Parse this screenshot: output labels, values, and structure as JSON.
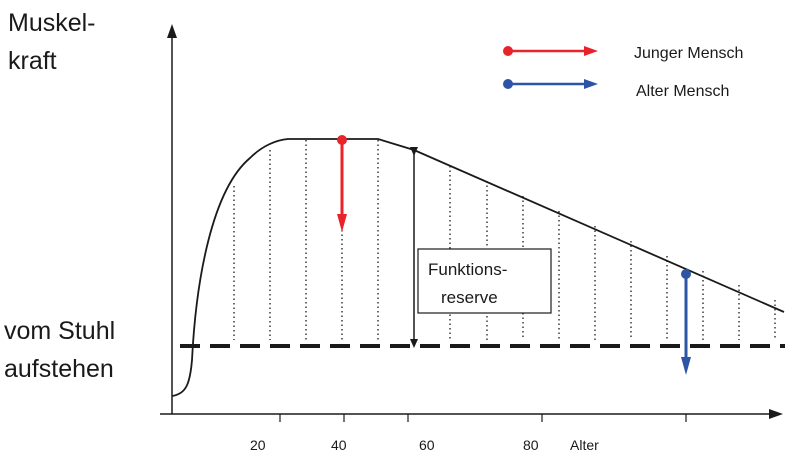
{
  "y_axis": {
    "label_line1": "Muskel-",
    "label_line2": "kraft"
  },
  "threshold": {
    "label_line1": "vom Stuhl",
    "label_line2": "aufstehen"
  },
  "x_axis": {
    "ticks": [
      "20",
      "40",
      "60",
      "80"
    ],
    "label": "Alter"
  },
  "legend": [
    {
      "label": "Junger Mensch",
      "color": "#e8232a"
    },
    {
      "label": "Alter Mensch",
      "color": "#2e55a5"
    }
  ],
  "annotation": {
    "line1": "Funktions-",
    "line2": "reserve"
  }
}
